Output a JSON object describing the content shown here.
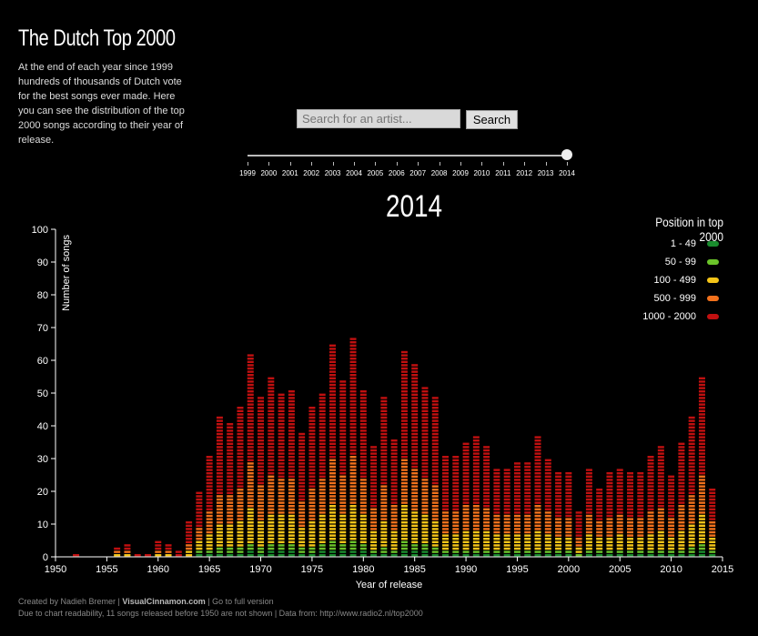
{
  "header": {
    "title": "The Dutch Top 2000",
    "intro": "At the end of each year since 1999 hundreds of thousands of Dutch vote for the best songs ever made. Here you can see the distribution of the top 2000 songs according to their year of release."
  },
  "search": {
    "placeholder": "Search for an artist...",
    "button_label": "Search"
  },
  "slider": {
    "years": [
      "1999",
      "2000",
      "2001",
      "2002",
      "2003",
      "2004",
      "2005",
      "2006",
      "2007",
      "2008",
      "2009",
      "2010",
      "2011",
      "2012",
      "2013",
      "2014"
    ],
    "selected": "2014"
  },
  "legend": {
    "title": "Position in top 2000",
    "items": [
      {
        "label": "1 - 49",
        "color": "#1a8c2e"
      },
      {
        "label": "50 - 99",
        "color": "#6bc42a"
      },
      {
        "label": "100 - 499",
        "color": "#f5c518"
      },
      {
        "label": "500 - 999",
        "color": "#f2711c"
      },
      {
        "label": "1000 - 2000",
        "color": "#c01010"
      }
    ]
  },
  "chart_data": {
    "type": "bar",
    "title": "2014",
    "xlabel": "Year of release",
    "ylabel": "Number of songs",
    "xlim": [
      1950,
      2015
    ],
    "ylim": [
      0,
      100
    ],
    "x_ticks": [
      1950,
      1955,
      1960,
      1965,
      1970,
      1975,
      1980,
      1985,
      1990,
      1995,
      2000,
      2005,
      2010,
      2015
    ],
    "y_ticks": [
      0,
      10,
      20,
      30,
      40,
      50,
      60,
      70,
      80,
      90,
      100
    ],
    "x": [
      1952,
      1955,
      1956,
      1957,
      1958,
      1959,
      1960,
      1961,
      1962,
      1963,
      1964,
      1965,
      1966,
      1967,
      1968,
      1969,
      1970,
      1971,
      1972,
      1973,
      1974,
      1975,
      1976,
      1977,
      1978,
      1979,
      1980,
      1981,
      1982,
      1983,
      1984,
      1985,
      1986,
      1987,
      1988,
      1989,
      1990,
      1991,
      1992,
      1993,
      1994,
      1995,
      1996,
      1997,
      1998,
      1999,
      2000,
      2001,
      2002,
      2003,
      2004,
      2005,
      2006,
      2007,
      2008,
      2009,
      2010,
      2011,
      2012,
      2013,
      2014
    ],
    "values": [
      1,
      0,
      3,
      4,
      1,
      1,
      5,
      4,
      2,
      11,
      20,
      31,
      43,
      41,
      46,
      62,
      49,
      55,
      50,
      51,
      38,
      46,
      50,
      65,
      54,
      67,
      51,
      34,
      49,
      36,
      63,
      59,
      52,
      49,
      31,
      31,
      35,
      37,
      34,
      27,
      27,
      29,
      29,
      37,
      30,
      26,
      26,
      14,
      27,
      21,
      26,
      27,
      26,
      26,
      31,
      34,
      25,
      35,
      43,
      55,
      21
    ],
    "stack_order": [
      "1 - 49",
      "50 - 99",
      "100 - 499",
      "500 - 999",
      "1000 - 2000"
    ]
  },
  "footer": {
    "created_by": "Created by Nadieh Bremer |",
    "site": "VisualCinnamon.com",
    "full_version": "| Go to full version",
    "note": "Due to chart readability, 11 songs released before 1950 are not shown | Data from: http://www.radio2.nl/top2000"
  }
}
